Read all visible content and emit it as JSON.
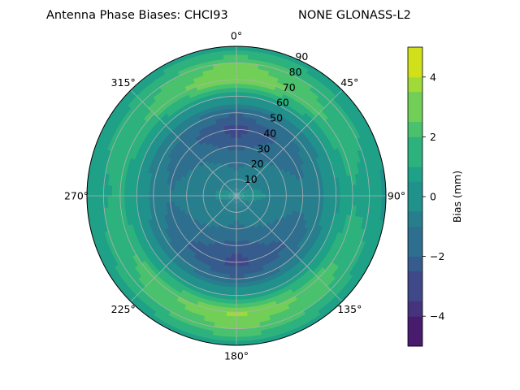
{
  "chart_data": {
    "type": "heatmap",
    "subtype": "polar-filled-contour",
    "title_left": "Antenna Phase Biases: CHCI93",
    "title_right": "NONE GLONASS-L2",
    "theta_zero": "top",
    "theta_direction": "clockwise",
    "theta_ticks": [
      "0°",
      "45°",
      "90°",
      "135°",
      "180°",
      "225°",
      "270°",
      "315°"
    ],
    "theta_tick_values": [
      0,
      45,
      90,
      135,
      180,
      225,
      270,
      315
    ],
    "r_ticks": [
      "10",
      "20",
      "30",
      "40",
      "50",
      "60",
      "70",
      "80",
      "90"
    ],
    "r_tick_values": [
      10,
      20,
      30,
      40,
      50,
      60,
      70,
      80,
      90
    ],
    "rlim": [
      0,
      90
    ],
    "grid": true,
    "colorbar": {
      "label": "Bias (mm)",
      "vmin": -5,
      "vmax": 5,
      "ticks": [
        "−4",
        "−2",
        "0",
        "2",
        "4"
      ],
      "tick_values": [
        -4,
        -2,
        0,
        2,
        4
      ],
      "levels": [
        -5,
        -4,
        -3,
        -2,
        -1,
        0,
        1,
        2,
        3,
        4,
        5
      ],
      "colormap": "viridis",
      "colors": [
        "#481b6d",
        "#46337e",
        "#3f4889",
        "#365c8d",
        "#2e6e8e",
        "#277f8e",
        "#21918c",
        "#1fa187",
        "#2db27d",
        "#4ac16d",
        "#71cf57",
        "#a0da39",
        "#d0e11c"
      ]
    },
    "field": {
      "description": "bias(mm) as function of azimuth (deg) and zenith (deg)",
      "zenith_mm": [
        {
          "zenith": 0,
          "bias": -0.5
        },
        {
          "zenith": 10,
          "bias": -0.6
        },
        {
          "zenith": 20,
          "bias": -1.0
        },
        {
          "zenith": 30,
          "bias": -1.6
        },
        {
          "zenith": 40,
          "bias": -2.2
        },
        {
          "zenith": 50,
          "bias": -1.3
        },
        {
          "zenith": 60,
          "bias": 0.5
        },
        {
          "zenith": 70,
          "bias": 2.6
        },
        {
          "zenith": 80,
          "bias": 2.0
        },
        {
          "zenith": 90,
          "bias": 0.6
        }
      ],
      "azimuth_modulation": [
        {
          "azimuth": 0,
          "factor": 1.4
        },
        {
          "azimuth": 45,
          "factor": 0.8
        },
        {
          "azimuth": 90,
          "factor": 0.4
        },
        {
          "azimuth": 135,
          "factor": 0.9
        },
        {
          "azimuth": 180,
          "factor": 1.4
        },
        {
          "azimuth": 225,
          "factor": 0.9
        },
        {
          "azimuth": 270,
          "factor": 0.5
        },
        {
          "azimuth": 315,
          "factor": 0.8
        }
      ]
    }
  }
}
